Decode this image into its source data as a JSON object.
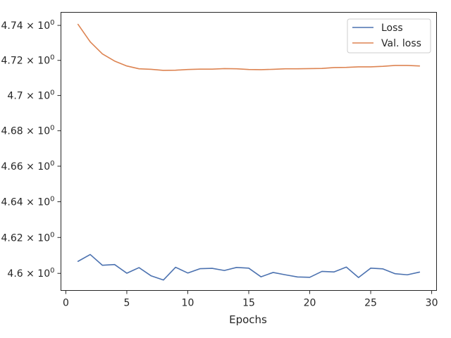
{
  "chart_data": {
    "type": "line",
    "title": "",
    "xlabel": "Epochs",
    "ylabel": "",
    "xlim": [
      -0.4,
      30.4
    ],
    "ylim": [
      4.5905,
      4.7475
    ],
    "yscale": "log",
    "grid": false,
    "legend_position": "top-right",
    "xticks": [
      0,
      5,
      10,
      15,
      20,
      25,
      30
    ],
    "yticks": [
      {
        "value": 4.6,
        "mant": "4.6"
      },
      {
        "value": 4.62,
        "mant": "4.62"
      },
      {
        "value": 4.64,
        "mant": "4.64"
      },
      {
        "value": 4.66,
        "mant": "4.66"
      },
      {
        "value": 4.68,
        "mant": "4.68"
      },
      {
        "value": 4.7,
        "mant": "4.7"
      },
      {
        "value": 4.72,
        "mant": "4.72"
      },
      {
        "value": 4.74,
        "mant": "4.74"
      }
    ],
    "ytick_suffix": {
      "times": "×",
      "base": "10",
      "exp": "0"
    },
    "x": [
      1,
      2,
      3,
      4,
      5,
      6,
      7,
      8,
      9,
      10,
      11,
      12,
      13,
      14,
      15,
      16,
      17,
      18,
      19,
      20,
      21,
      22,
      23,
      24,
      25,
      26,
      27,
      28,
      29
    ],
    "series": [
      {
        "name": "Loss",
        "color": "#4c72b0",
        "values": [
          4.6067,
          4.6105,
          4.6045,
          4.6049,
          4.6001,
          4.6032,
          4.5986,
          4.5963,
          4.6034,
          4.6002,
          4.6026,
          4.6028,
          4.6016,
          4.6033,
          4.6029,
          4.5981,
          4.6005,
          4.5992,
          4.598,
          4.5978,
          4.6011,
          4.6008,
          4.6035,
          4.5977,
          4.6029,
          4.6025,
          4.5998,
          4.5992,
          4.6007
        ]
      },
      {
        "name": "Val. loss",
        "color": "#dd8452",
        "values": [
          4.7406,
          4.7306,
          4.7237,
          4.7196,
          4.7168,
          4.7152,
          4.7149,
          4.7143,
          4.7144,
          4.7148,
          4.715,
          4.715,
          4.7153,
          4.7152,
          4.7148,
          4.7147,
          4.7149,
          4.7152,
          4.7152,
          4.7153,
          4.7154,
          4.7159,
          4.716,
          4.7163,
          4.7163,
          4.7166,
          4.7171,
          4.7171,
          4.7168
        ]
      }
    ]
  }
}
